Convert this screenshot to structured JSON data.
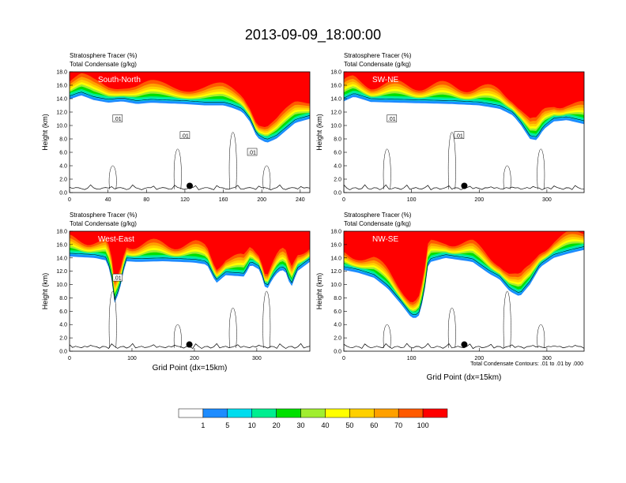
{
  "figure": {
    "title": "2013-09-09_18:00:00",
    "footnote": "Total Condensate Contours: .01 to .01 by .000"
  },
  "colorbar": {
    "colors": [
      "#ffffff",
      "#1e8cff",
      "#00ddee",
      "#00ee90",
      "#00e000",
      "#a0ee30",
      "#ffff00",
      "#ffd000",
      "#ffa000",
      "#ff5a00",
      "#ff0000"
    ],
    "labels": [
      "1",
      "5",
      "10",
      "20",
      "30",
      "40",
      "50",
      "60",
      "70",
      "100"
    ]
  },
  "chart_data": [
    {
      "type": "heatmap",
      "panel_label": "South-North",
      "title_lines": [
        "Stratosphere Tracer   (%)",
        "Total Condensate   (g/kg)"
      ],
      "xlabel": "",
      "ylabel": "Height (km)",
      "xlim": [
        0,
        250
      ],
      "ylim": [
        0,
        18
      ],
      "xticks": [
        "0",
        "40",
        "80",
        "120",
        "160",
        "200",
        "240"
      ],
      "xtick_values": [
        0,
        40,
        80,
        120,
        160,
        200,
        240
      ],
      "yticks": [
        "0.0",
        "2.0",
        "4.0",
        "6.0",
        "8.0",
        "10.0",
        "12.0",
        "14.0",
        "16.0",
        "18.0"
      ],
      "marker_x": 125,
      "contour_labels": [
        ".01",
        ".01",
        ".01"
      ],
      "tracer_base_km": [
        [
          0,
          13.9
        ],
        [
          12,
          14.5
        ],
        [
          25,
          13.8
        ],
        [
          40,
          13.4
        ],
        [
          55,
          13.6
        ],
        [
          70,
          13.2
        ],
        [
          85,
          13.4
        ],
        [
          100,
          13.3
        ],
        [
          120,
          13.2
        ],
        [
          140,
          13.0
        ],
        [
          160,
          13.0
        ],
        [
          170,
          12.6
        ],
        [
          180,
          12.0
        ],
        [
          188,
          10.5
        ],
        [
          195,
          8.2
        ],
        [
          205,
          7.4
        ],
        [
          215,
          8.0
        ],
        [
          225,
          9.2
        ],
        [
          235,
          10.4
        ],
        [
          250,
          11.0
        ]
      ]
    },
    {
      "type": "heatmap",
      "panel_label": "SW-NE",
      "title_lines": [
        "Stratosphere Tracer   (%)",
        "Total Condensate   (g/kg)"
      ],
      "xlabel": "",
      "ylabel": "Height (km)",
      "xlim": [
        0,
        355
      ],
      "ylim": [
        0,
        18
      ],
      "xticks": [
        "0",
        "100",
        "200",
        "300"
      ],
      "xtick_values": [
        0,
        100,
        200,
        300
      ],
      "yticks": [
        "0.0",
        "2.0",
        "4.0",
        "6.0",
        "8.0",
        "10.0",
        "12.0",
        "14.0",
        "16.0",
        "18.0"
      ],
      "marker_x": 178,
      "contour_labels": [
        ".01",
        ".01"
      ],
      "tracer_base_km": [
        [
          0,
          13.6
        ],
        [
          15,
          14.3
        ],
        [
          40,
          13.5
        ],
        [
          80,
          13.4
        ],
        [
          120,
          13.3
        ],
        [
          160,
          13.2
        ],
        [
          200,
          13.0
        ],
        [
          230,
          12.5
        ],
        [
          250,
          11.5
        ],
        [
          262,
          10.0
        ],
        [
          275,
          8.0
        ],
        [
          285,
          7.8
        ],
        [
          295,
          9.4
        ],
        [
          310,
          10.6
        ],
        [
          330,
          10.8
        ],
        [
          355,
          10.2
        ]
      ]
    },
    {
      "type": "heatmap",
      "panel_label": "West-East",
      "title_lines": [
        "Stratosphere Tracer   (%)",
        "Total Condensate   (g/kg)"
      ],
      "xlabel": "Grid Point (dx=15km)",
      "ylabel": "Height (km)",
      "xlim": [
        0,
        385
      ],
      "ylim": [
        0,
        18
      ],
      "xticks": [
        "0",
        "100",
        "200",
        "300"
      ],
      "xtick_values": [
        0,
        100,
        200,
        300
      ],
      "yticks": [
        "0.0",
        "2.0",
        "4.0",
        "6.0",
        "8.0",
        "10.0",
        "12.0",
        "14.0",
        "16.0",
        "18.0"
      ],
      "marker_x": 192,
      "contour_labels": [
        ".01"
      ],
      "tracer_base_km": [
        [
          0,
          14.2
        ],
        [
          40,
          14.0
        ],
        [
          60,
          13.6
        ],
        [
          68,
          10.5
        ],
        [
          72,
          7.2
        ],
        [
          80,
          9.0
        ],
        [
          90,
          13.5
        ],
        [
          110,
          13.4
        ],
        [
          150,
          13.5
        ],
        [
          200,
          13.3
        ],
        [
          220,
          13.0
        ],
        [
          235,
          10.2
        ],
        [
          250,
          11.4
        ],
        [
          280,
          11.2
        ],
        [
          290,
          13.0
        ],
        [
          305,
          12.2
        ],
        [
          315,
          9.0
        ],
        [
          325,
          10.8
        ],
        [
          335,
          12.0
        ],
        [
          345,
          12.2
        ],
        [
          355,
          9.5
        ],
        [
          365,
          12.0
        ],
        [
          385,
          13.4
        ]
      ]
    },
    {
      "type": "heatmap",
      "panel_label": "NW-SE",
      "title_lines": [
        "Stratosphere Tracer   (%)",
        "Total Condensate   (g/kg)"
      ],
      "xlabel": "Grid Point (dx=15km)",
      "ylabel": "Height (km)",
      "xlim": [
        0,
        355
      ],
      "ylim": [
        0,
        18
      ],
      "xticks": [
        "0",
        "100",
        "200",
        "300"
      ],
      "xtick_values": [
        0,
        100,
        200,
        300
      ],
      "yticks": [
        "0.0",
        "2.0",
        "4.0",
        "6.0",
        "8.0",
        "10.0",
        "12.0",
        "14.0",
        "16.0",
        "18.0"
      ],
      "marker_x": 178,
      "contour_labels": [],
      "tracer_base_km": [
        [
          0,
          12.2
        ],
        [
          20,
          11.8
        ],
        [
          45,
          11.0
        ],
        [
          65,
          9.4
        ],
        [
          85,
          7.0
        ],
        [
          100,
          5.0
        ],
        [
          110,
          5.0
        ],
        [
          118,
          8.0
        ],
        [
          125,
          13.3
        ],
        [
          150,
          14.0
        ],
        [
          190,
          13.4
        ],
        [
          215,
          11.6
        ],
        [
          230,
          10.8
        ],
        [
          245,
          9.0
        ],
        [
          260,
          8.2
        ],
        [
          275,
          10.0
        ],
        [
          290,
          12.6
        ],
        [
          310,
          14.0
        ],
        [
          330,
          14.6
        ],
        [
          355,
          15.2
        ]
      ]
    }
  ]
}
